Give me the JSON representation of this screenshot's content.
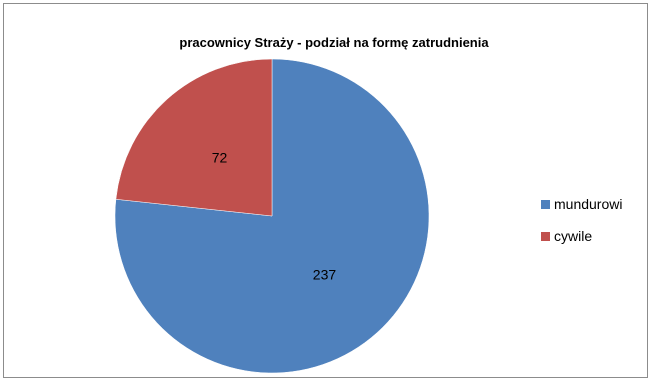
{
  "chart_data": {
    "type": "pie",
    "title": "pracownicy Straży - podział  na formę zatrudnienia",
    "categories": [
      "mundurowi",
      "cywile"
    ],
    "values": [
      237,
      72
    ],
    "colors": [
      "#4f81bd",
      "#c0504d"
    ],
    "legend_position": "right",
    "start_angle_deg": 0,
    "direction": "clockwise"
  }
}
